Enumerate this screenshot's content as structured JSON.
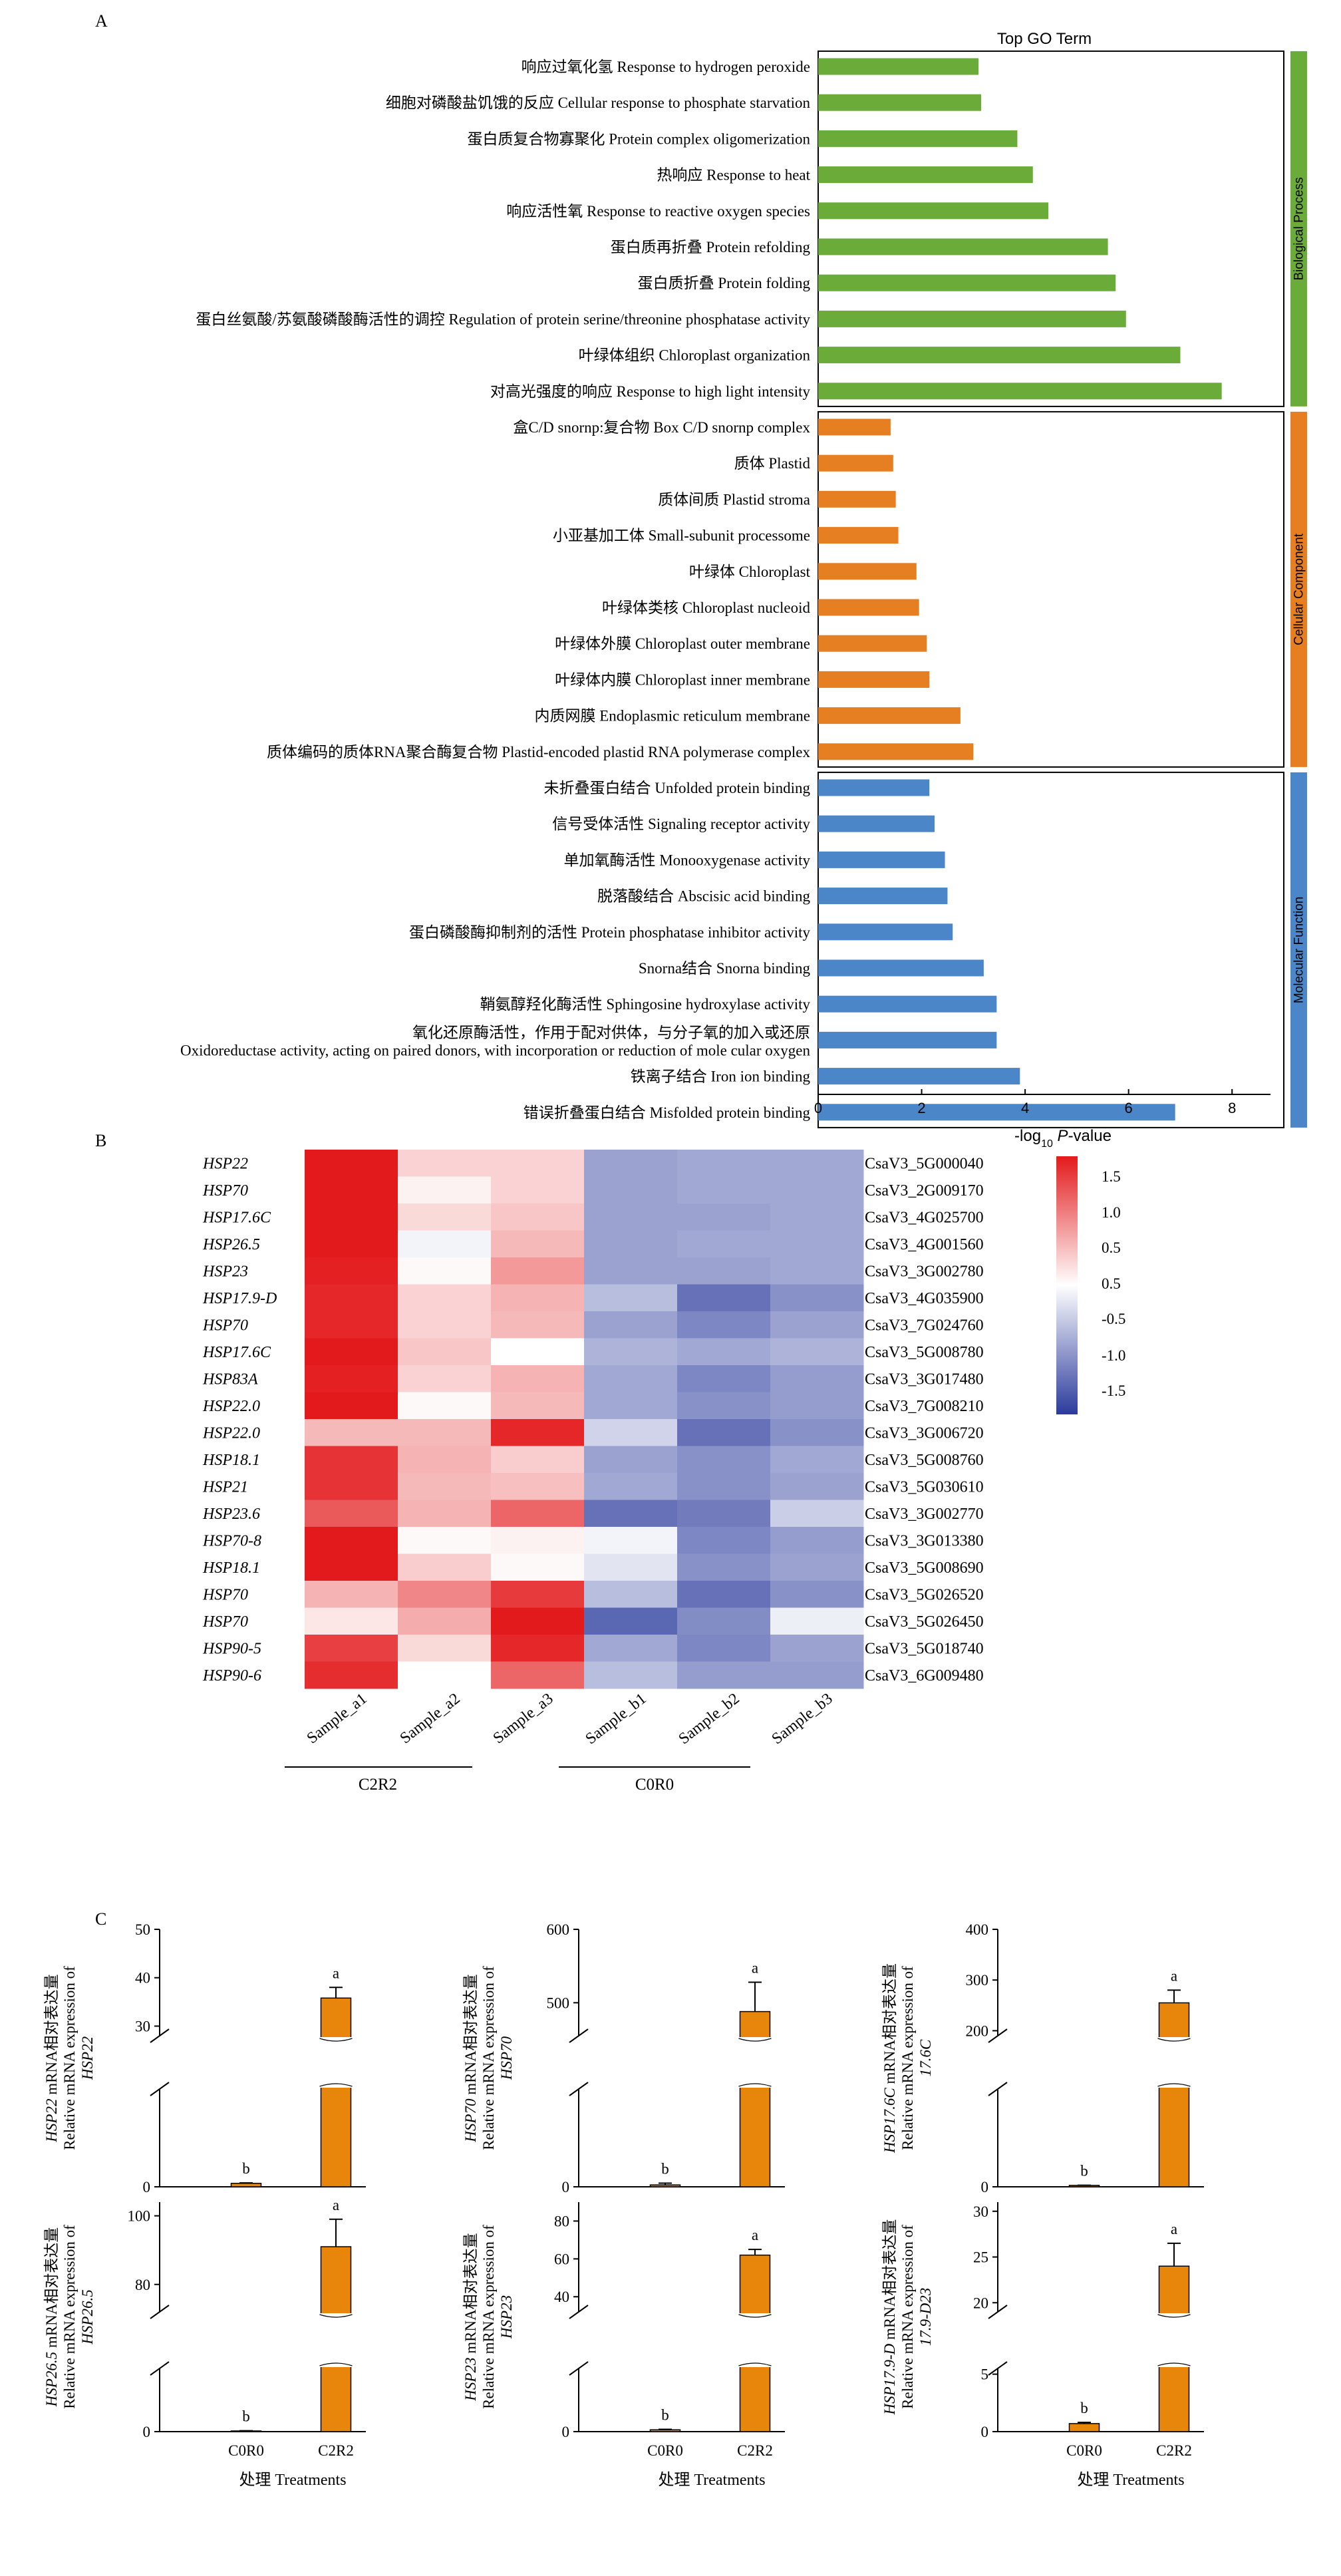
{
  "panels": {
    "a_label": "A",
    "b_label": "B",
    "c_label": "C"
  },
  "colors": {
    "bio": "#6aab3a",
    "cell": "#e67e22",
    "mol": "#4a86c8",
    "bar_c": "#e8860c",
    "heat_high": "#e31a1c",
    "heat_mid": "#ffffff",
    "heat_low": "#2b3b9c"
  },
  "chart_data": [
    {
      "type": "bar",
      "orientation": "horizontal",
      "title": "Top GO Term",
      "xlabel_prefix": "-log",
      "xlabel_sub": "10",
      "xlabel_p": "P",
      "xlabel_suffix": "-value",
      "xlim": [
        0,
        9
      ],
      "xticks": [
        "0",
        "2",
        "4",
        "6",
        "8"
      ],
      "groups": [
        {
          "name": "Biological Process",
          "color_key": "bio",
          "terms": [
            {
              "label": "响应过氧化氢 Response to hydrogen peroxide",
              "value": 3.1
            },
            {
              "label": "细胞对磷酸盐饥饿的反应 Cellular response to phosphate starvation",
              "value": 3.15
            },
            {
              "label": "蛋白质复合物寡聚化 Protein complex oligomerization",
              "value": 3.85
            },
            {
              "label": "热响应 Response to heat",
              "value": 4.15
            },
            {
              "label": "响应活性氧 Response to reactive oxygen species",
              "value": 4.45
            },
            {
              "label": "蛋白质再折叠 Protein refolding",
              "value": 5.6
            },
            {
              "label": "蛋白质折叠 Protein folding",
              "value": 5.75
            },
            {
              "label": "蛋白丝氨酸/苏氨酸磷酸酶活性的调控 Regulation of protein serine/threonine phosphatase activity",
              "value": 5.95
            },
            {
              "label": "叶绿体组织 Chloroplast organization",
              "value": 7.0
            },
            {
              "label": "对高光强度的响应 Response to high light intensity",
              "value": 7.8
            }
          ]
        },
        {
          "name": "Cellular Component",
          "color_key": "cell",
          "terms": [
            {
              "label": "盒C/D snornp:复合物 Box C/D snornp complex",
              "value": 1.4
            },
            {
              "label": "质体 Plastid",
              "value": 1.45
            },
            {
              "label": "质体间质 Plastid stroma",
              "value": 1.5
            },
            {
              "label": "小亚基加工体 Small-subunit processome",
              "value": 1.55
            },
            {
              "label": "叶绿体 Chloroplast",
              "value": 1.9
            },
            {
              "label": "叶绿体类核 Chloroplast nucleoid",
              "value": 1.95
            },
            {
              "label": "叶绿体外膜 Chloroplast outer membrane",
              "value": 2.1
            },
            {
              "label": "叶绿体内膜 Chloroplast inner membrane",
              "value": 2.15
            },
            {
              "label": "内质网膜 Endoplasmic reticulum membrane",
              "value": 2.75
            },
            {
              "label": "质体编码的质体RNA聚合酶复合物 Plastid-encoded plastid RNA polymerase complex",
              "value": 3.0
            }
          ]
        },
        {
          "name": "Molecular Function",
          "color_key": "mol",
          "terms": [
            {
              "label": "未折叠蛋白结合 Unfolded protein binding",
              "value": 2.15
            },
            {
              "label": "信号受体活性 Signaling receptor activity",
              "value": 2.25
            },
            {
              "label": "单加氧酶活性 Monooxygenase activity",
              "value": 2.45
            },
            {
              "label": "脱落酸结合 Abscisic acid binding",
              "value": 2.5
            },
            {
              "label": "蛋白磷酸酶抑制剂的活性 Protein phosphatase inhibitor activity",
              "value": 2.6
            },
            {
              "label": "Snorna结合 Snorna binding",
              "value": 3.2
            },
            {
              "label": "鞘氨醇羟化酶活性 Sphingosine hydroxylase activity",
              "value": 3.45
            },
            {
              "label": "氧化还原酶活性，作用于配对供体，与分子氧的加入或还原\nOxidoreductase activity, acting on paired donors, with incorporation or reduction of mole cular oxygen",
              "value": 3.45
            },
            {
              "label": "铁离子结合 Iron ion binding",
              "value": 3.9
            },
            {
              "label": "错误折叠蛋白结合 Misfolded protein binding",
              "value": 6.9
            }
          ]
        }
      ]
    },
    {
      "type": "heatmap",
      "rows": [
        "HSP22",
        "HSP70",
        "HSP17.6C",
        "HSP26.5",
        "HSP23",
        "HSP17.9-D",
        "HSP70",
        "HSP17.6C",
        "HSP83A",
        "HSP22.0",
        "HSP22.0",
        "HSP18.1",
        "HSP21",
        "HSP23.6",
        "HSP70-8",
        "HSP18.1",
        "HSP70",
        "HSP70",
        "HSP90-5",
        "HSP90-6"
      ],
      "row_ids": [
        "CsaV3_5G000040",
        "CsaV3_2G009170",
        "CsaV3_4G025700",
        "CsaV3_4G001560",
        "CsaV3_3G002780",
        "CsaV3_4G035900",
        "CsaV3_7G024760",
        "CsaV3_5G008780",
        "CsaV3_3G017480",
        "CsaV3_7G008210",
        "CsaV3_3G006720",
        "CsaV3_5G008760",
        "CsaV3_5G030610",
        "CsaV3_3G002770",
        "CsaV3_3G013380",
        "CsaV3_5G008690",
        "CsaV3_5G026520",
        "CsaV3_5G026450",
        "CsaV3_5G018740",
        "CsaV3_6G009480"
      ],
      "columns": [
        "Sample_a1",
        "Sample_a2",
        "Sample_a3",
        "Sample_b1",
        "Sample_b2",
        "Sample_b3"
      ],
      "column_groups": [
        {
          "name": "C2R2",
          "columns": [
            "Sample_a1",
            "Sample_a2",
            "Sample_a3"
          ]
        },
        {
          "name": "C0R0",
          "columns": [
            "Sample_b1",
            "Sample_b2",
            "Sample_b3"
          ]
        }
      ],
      "values": [
        [
          1.9,
          0.35,
          0.35,
          -0.85,
          -0.8,
          -0.8
        ],
        [
          1.9,
          0.1,
          0.35,
          -0.85,
          -0.8,
          -0.8
        ],
        [
          1.9,
          0.3,
          0.45,
          -0.85,
          -0.85,
          -0.8
        ],
        [
          1.85,
          -0.1,
          0.55,
          -0.85,
          -0.8,
          -0.8
        ],
        [
          1.75,
          0.05,
          0.8,
          -0.85,
          -0.85,
          -0.8
        ],
        [
          1.7,
          0.35,
          0.6,
          -0.6,
          -1.3,
          -1.0
        ],
        [
          1.7,
          0.35,
          0.55,
          -0.85,
          -1.1,
          -0.85
        ],
        [
          1.95,
          0.45,
          0.0,
          -0.7,
          -0.8,
          -0.7
        ],
        [
          1.75,
          0.35,
          0.6,
          -0.8,
          -1.1,
          -0.9
        ],
        [
          1.95,
          0.05,
          0.55,
          -0.8,
          -1.0,
          -0.9
        ],
        [
          0.55,
          0.55,
          1.7,
          -0.4,
          -1.3,
          -1.0
        ],
        [
          1.6,
          0.6,
          0.4,
          -0.85,
          -1.0,
          -0.8
        ],
        [
          1.6,
          0.55,
          0.5,
          -0.8,
          -1.0,
          -0.85
        ],
        [
          1.3,
          0.6,
          1.2,
          -1.3,
          -1.2,
          -0.45
        ],
        [
          1.95,
          0.05,
          0.1,
          -0.1,
          -1.1,
          -0.9
        ],
        [
          1.95,
          0.4,
          0.05,
          -0.25,
          -1.0,
          -0.85
        ],
        [
          0.6,
          0.95,
          1.55,
          -0.6,
          -1.3,
          -1.0
        ],
        [
          0.2,
          0.65,
          1.85,
          -1.4,
          -1.05,
          -0.15
        ],
        [
          1.5,
          0.3,
          1.7,
          -0.8,
          -1.1,
          -0.85
        ],
        [
          1.65,
          0.0,
          1.2,
          -0.6,
          -0.9,
          -0.9
        ]
      ],
      "colorbar": {
        "range": [
          -1.8,
          1.8
        ],
        "ticks": [
          "1.5",
          "1.0",
          "0.5",
          "0.5",
          "-0.5",
          "-1.0",
          "-1.5"
        ]
      }
    },
    {
      "type": "bar",
      "subtype": "broken-axis",
      "xlabel": "处理 Treatments",
      "categories": [
        "C0R0",
        "C2R2"
      ],
      "plots": [
        {
          "gene": "HSP22",
          "ylabel_cn": "mRNA相对表达量",
          "ylabel_en": "Relative mRNA expression of",
          "upper_ticks": [
            "50",
            "40",
            "30"
          ],
          "upper_range": [
            28,
            50
          ],
          "lower_ticks": [
            "0"
          ],
          "values": [
            1.6,
            35.8
          ],
          "errors": [
            0.2,
            2.2
          ],
          "letters": [
            "b",
            "a"
          ]
        },
        {
          "gene": "HSP70",
          "ylabel_cn": "mRNA相对表达量",
          "ylabel_en": "Relative mRNA expression of",
          "upper_ticks": [
            "600",
            "500"
          ],
          "upper_range": [
            455,
            600
          ],
          "lower_ticks": [
            "0"
          ],
          "values": [
            14,
            488
          ],
          "errors": [
            13,
            40
          ],
          "letters": [
            "b",
            "a"
          ]
        },
        {
          "gene": "HSP17.6C",
          "ylabel_cn": "mRNA相对表达量",
          "ylabel_en": "Relative mRNA  expression of",
          "gene2": "17.6C",
          "upper_ticks": [
            "400",
            "300",
            "200"
          ],
          "upper_range": [
            190,
            400
          ],
          "lower_ticks": [
            "0"
          ],
          "values": [
            4.5,
            255
          ],
          "errors": [
            0.5,
            25
          ],
          "letters": [
            "b",
            "a"
          ]
        },
        {
          "gene": "HSP26.5",
          "ylabel_cn": "mRNA相对表达量",
          "ylabel_en": "Relative mRNA expression of",
          "upper_ticks": [
            "100",
            "80"
          ],
          "upper_range": [
            72,
            104
          ],
          "lower_ticks": [
            "0"
          ],
          "values": [
            1.3,
            91
          ],
          "errors": [
            0.4,
            8
          ],
          "letters": [
            "b",
            "a"
          ]
        },
        {
          "gene": "HSP23",
          "ylabel_cn": "mRNA相对表达量",
          "ylabel_en": "Relative mRNA expression of",
          "upper_ticks": [
            "80",
            "60",
            "40"
          ],
          "upper_range": [
            32,
            90
          ],
          "lower_ticks": [
            "0"
          ],
          "values": [
            1.5,
            62
          ],
          "errors": [
            0.4,
            3
          ],
          "letters": [
            "b",
            "a"
          ]
        },
        {
          "gene": "HSP17.9-D",
          "ylabel_cn": "mRNA相对表达量",
          "ylabel_en": "Relative mRNA expression of",
          "gene2": "17.9-D23",
          "upper_ticks": [
            "30",
            "25",
            "20"
          ],
          "upper_range": [
            19,
            31
          ],
          "lower_ticks": [
            "5",
            "0"
          ],
          "lower_range": [
            0,
            5.5
          ],
          "values": [
            0.7,
            24
          ],
          "errors": [
            0.1,
            2.5
          ],
          "letters": [
            "b",
            "a"
          ]
        }
      ]
    }
  ]
}
